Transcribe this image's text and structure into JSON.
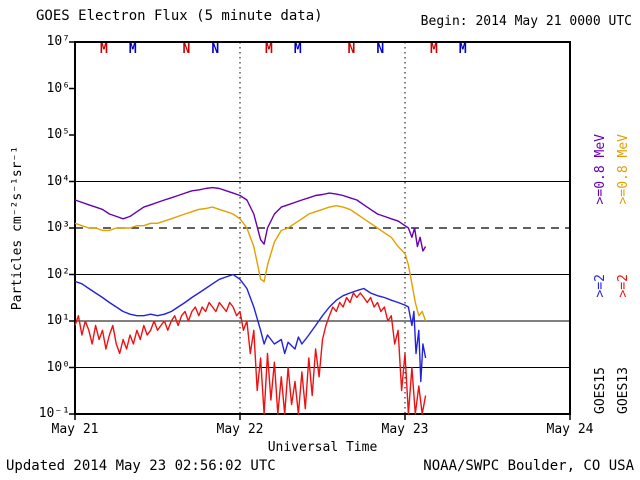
{
  "header": {
    "title": "GOES Electron Flux (5 minute data)",
    "begin": "Begin: 2014 May 21 0000 UTC"
  },
  "footer": {
    "updated": "Updated 2014 May 23 02:56:02 UTC",
    "source": "NOAA/SWPC Boulder, CO USA"
  },
  "right_legend": {
    "goes15": {
      "sat": "GOES15",
      "e2": ">=2",
      "e08": ">=0.8 MeV"
    },
    "goes13": {
      "sat": "GOES13",
      "e2": ">=2",
      "e08": ">=0.8 MeV"
    }
  },
  "colors": {
    "goes15_e08": "#6600b0",
    "goes13_e08": "#e2a000",
    "goes15_e2": "#2222dd",
    "goes13_e2": "#ee1111",
    "marker_goes13": "#cc0000",
    "marker_goes15": "#0000cc",
    "axis": "#000000"
  },
  "chart_data": {
    "type": "line",
    "title": "GOES Electron Flux (5 minute data)",
    "xlabel": "Universal Time",
    "ylabel": "Particles cm⁻²s⁻¹sr⁻¹",
    "x_axis_hours_from": "2014 May 21 0000 UTC",
    "xlim_hours": [
      0,
      72
    ],
    "x_ticks": [
      {
        "t": 0,
        "label": "May 21"
      },
      {
        "t": 24,
        "label": "May 22"
      },
      {
        "t": 48,
        "label": "May 23"
      },
      {
        "t": 72,
        "label": "May 24"
      }
    ],
    "y_scale": "log10",
    "ylim": [
      0.1,
      10000000
    ],
    "y_ticks": [
      "10⁷",
      "10⁶",
      "10⁵",
      "10⁴",
      "10³",
      "10²",
      "10¹",
      "10⁰",
      "10⁻¹"
    ],
    "threshold_line": {
      "value": 1000,
      "style": "dashed"
    },
    "gridlines_solid_at": [
      1,
      10,
      100,
      10000
    ],
    "day_boundary_lines_hours": [
      24,
      48
    ],
    "legend_position": "right-vertical",
    "markers": [
      {
        "t": 4.2,
        "label": "M",
        "sat": "GOES13",
        "color": "#cc0000"
      },
      {
        "t": 8.4,
        "label": "M",
        "sat": "GOES15",
        "color": "#0000cc"
      },
      {
        "t": 16.2,
        "label": "N",
        "sat": "GOES13",
        "color": "#cc0000"
      },
      {
        "t": 20.4,
        "label": "N",
        "sat": "GOES15",
        "color": "#0000cc"
      },
      {
        "t": 28.2,
        "label": "M",
        "sat": "GOES13",
        "color": "#cc0000"
      },
      {
        "t": 32.4,
        "label": "M",
        "sat": "GOES15",
        "color": "#0000cc"
      },
      {
        "t": 40.2,
        "label": "N",
        "sat": "GOES13",
        "color": "#cc0000"
      },
      {
        "t": 44.4,
        "label": "N",
        "sat": "GOES15",
        "color": "#0000cc"
      },
      {
        "t": 52.2,
        "label": "M",
        "sat": "GOES13",
        "color": "#cc0000"
      },
      {
        "t": 56.4,
        "label": "M",
        "sat": "GOES15",
        "color": "#0000cc"
      }
    ],
    "series": [
      {
        "id": "goes15-e08",
        "name": "GOES15 >=0.8 MeV",
        "color": "#6600b0",
        "points": [
          [
            0,
            4000
          ],
          [
            1,
            3550
          ],
          [
            2,
            3160
          ],
          [
            3,
            2820
          ],
          [
            4,
            2510
          ],
          [
            5,
            2000
          ],
          [
            6,
            1780
          ],
          [
            7,
            1580
          ],
          [
            8,
            1780
          ],
          [
            9,
            2240
          ],
          [
            10,
            2820
          ],
          [
            11,
            3160
          ],
          [
            12,
            3550
          ],
          [
            13,
            4000
          ],
          [
            14,
            4470
          ],
          [
            15,
            5000
          ],
          [
            16,
            5620
          ],
          [
            17,
            6310
          ],
          [
            18,
            6610
          ],
          [
            19,
            7080
          ],
          [
            20,
            7410
          ],
          [
            21,
            7080
          ],
          [
            22,
            6310
          ],
          [
            23,
            5620
          ],
          [
            24,
            5000
          ],
          [
            25,
            4000
          ],
          [
            26,
            2000
          ],
          [
            27,
            560
          ],
          [
            27.5,
            450
          ],
          [
            28,
            1000
          ],
          [
            29,
            2000
          ],
          [
            30,
            2820
          ],
          [
            31,
            3160
          ],
          [
            32,
            3550
          ],
          [
            33,
            4000
          ],
          [
            34,
            4470
          ],
          [
            35,
            5000
          ],
          [
            36,
            5250
          ],
          [
            37,
            5620
          ],
          [
            38,
            5370
          ],
          [
            39,
            5000
          ],
          [
            40,
            4470
          ],
          [
            41,
            4000
          ],
          [
            42,
            3160
          ],
          [
            43,
            2510
          ],
          [
            44,
            2000
          ],
          [
            45,
            1780
          ],
          [
            46,
            1580
          ],
          [
            47,
            1410
          ],
          [
            48,
            1120
          ],
          [
            48.5,
            1000
          ],
          [
            49,
            630
          ],
          [
            49.4,
            1000
          ],
          [
            49.8,
            400
          ],
          [
            50.2,
            630
          ],
          [
            50.6,
            320
          ],
          [
            51,
            400
          ]
        ]
      },
      {
        "id": "goes13-e08",
        "name": "GOES13 >=0.8 MeV",
        "color": "#e2a000",
        "points": [
          [
            0,
            1260
          ],
          [
            1,
            1120
          ],
          [
            2,
            1000
          ],
          [
            3,
            1000
          ],
          [
            4,
            890
          ],
          [
            5,
            890
          ],
          [
            6,
            1000
          ],
          [
            7,
            1000
          ],
          [
            8,
            1000
          ],
          [
            9,
            1120
          ],
          [
            10,
            1120
          ],
          [
            11,
            1260
          ],
          [
            12,
            1260
          ],
          [
            13,
            1410
          ],
          [
            14,
            1580
          ],
          [
            15,
            1780
          ],
          [
            16,
            2000
          ],
          [
            17,
            2240
          ],
          [
            18,
            2510
          ],
          [
            19,
            2630
          ],
          [
            20,
            2820
          ],
          [
            21,
            2510
          ],
          [
            22,
            2240
          ],
          [
            23,
            2000
          ],
          [
            24,
            1580
          ],
          [
            25,
            1000
          ],
          [
            26,
            400
          ],
          [
            27,
            80
          ],
          [
            27.5,
            70
          ],
          [
            28,
            160
          ],
          [
            29,
            500
          ],
          [
            30,
            890
          ],
          [
            31,
            1000
          ],
          [
            32,
            1260
          ],
          [
            33,
            1580
          ],
          [
            34,
            2000
          ],
          [
            35,
            2240
          ],
          [
            36,
            2510
          ],
          [
            37,
            2820
          ],
          [
            38,
            3020
          ],
          [
            39,
            2820
          ],
          [
            40,
            2510
          ],
          [
            41,
            2000
          ],
          [
            42,
            1580
          ],
          [
            43,
            1260
          ],
          [
            44,
            1000
          ],
          [
            45,
            790
          ],
          [
            46,
            630
          ],
          [
            47,
            400
          ],
          [
            48,
            280
          ],
          [
            48.5,
            160
          ],
          [
            49,
            63
          ],
          [
            49.5,
            25
          ],
          [
            50,
            13
          ],
          [
            50.5,
            16
          ],
          [
            51,
            10
          ]
        ]
      },
      {
        "id": "goes15-e2",
        "name": "GOES15 >=2 MeV",
        "color": "#2222dd",
        "points": [
          [
            0,
            71
          ],
          [
            1,
            63
          ],
          [
            2,
            50
          ],
          [
            3,
            40
          ],
          [
            4,
            32
          ],
          [
            5,
            25
          ],
          [
            6,
            20
          ],
          [
            7,
            16
          ],
          [
            8,
            14
          ],
          [
            9,
            13
          ],
          [
            10,
            13
          ],
          [
            11,
            14
          ],
          [
            12,
            13
          ],
          [
            13,
            14
          ],
          [
            14,
            16
          ],
          [
            15,
            20
          ],
          [
            16,
            25
          ],
          [
            17,
            32
          ],
          [
            18,
            40
          ],
          [
            19,
            50
          ],
          [
            20,
            63
          ],
          [
            21,
            79
          ],
          [
            22,
            89
          ],
          [
            23,
            100
          ],
          [
            24,
            79
          ],
          [
            25,
            50
          ],
          [
            26,
            20
          ],
          [
            27,
            6.3
          ],
          [
            27.5,
            3.2
          ],
          [
            28,
            5
          ],
          [
            29,
            3.2
          ],
          [
            30,
            4
          ],
          [
            30.5,
            2
          ],
          [
            31,
            3.5
          ],
          [
            32,
            2.5
          ],
          [
            32.5,
            4.5
          ],
          [
            33,
            3.2
          ],
          [
            34,
            5
          ],
          [
            35,
            8
          ],
          [
            36,
            13
          ],
          [
            37,
            20
          ],
          [
            38,
            28
          ],
          [
            39,
            35
          ],
          [
            40,
            40
          ],
          [
            41,
            45
          ],
          [
            42,
            50
          ],
          [
            43,
            40
          ],
          [
            44,
            35
          ],
          [
            45,
            32
          ],
          [
            46,
            28
          ],
          [
            47,
            25
          ],
          [
            48,
            22
          ],
          [
            48.5,
            20
          ],
          [
            49,
            8
          ],
          [
            49.3,
            16
          ],
          [
            49.6,
            2
          ],
          [
            50,
            6.3
          ],
          [
            50.3,
            0.5
          ],
          [
            50.6,
            3.2
          ],
          [
            51,
            1.6
          ]
        ]
      },
      {
        "id": "goes13-e2",
        "name": "GOES13 >=2 MeV",
        "color": "#ee1111",
        "points": [
          [
            0,
            8
          ],
          [
            0.5,
            13
          ],
          [
            1,
            5
          ],
          [
            1.5,
            10
          ],
          [
            2,
            6.3
          ],
          [
            2.5,
            3.2
          ],
          [
            3,
            8
          ],
          [
            3.5,
            4
          ],
          [
            4,
            6.3
          ],
          [
            4.5,
            2.5
          ],
          [
            5,
            5
          ],
          [
            5.5,
            8
          ],
          [
            6,
            3.2
          ],
          [
            6.5,
            2
          ],
          [
            7,
            4
          ],
          [
            7.5,
            2.5
          ],
          [
            8,
            5
          ],
          [
            8.5,
            3.2
          ],
          [
            9,
            6.3
          ],
          [
            9.5,
            4
          ],
          [
            10,
            8
          ],
          [
            10.5,
            5
          ],
          [
            11,
            6.3
          ],
          [
            11.5,
            10
          ],
          [
            12,
            6.3
          ],
          [
            12.5,
            8
          ],
          [
            13,
            10
          ],
          [
            13.5,
            6.3
          ],
          [
            14,
            10
          ],
          [
            14.5,
            13
          ],
          [
            15,
            8
          ],
          [
            15.5,
            13
          ],
          [
            16,
            16
          ],
          [
            16.5,
            10
          ],
          [
            17,
            16
          ],
          [
            17.5,
            20
          ],
          [
            18,
            13
          ],
          [
            18.5,
            20
          ],
          [
            19,
            16
          ],
          [
            19.5,
            25
          ],
          [
            20,
            20
          ],
          [
            20.5,
            16
          ],
          [
            21,
            25
          ],
          [
            21.5,
            20
          ],
          [
            22,
            16
          ],
          [
            22.5,
            25
          ],
          [
            23,
            20
          ],
          [
            23.5,
            13
          ],
          [
            24,
            16
          ],
          [
            24.5,
            6.3
          ],
          [
            25,
            10
          ],
          [
            25.5,
            2
          ],
          [
            26,
            6.3
          ],
          [
            26.5,
            0.32
          ],
          [
            27,
            1.6
          ],
          [
            27.5,
            0.1
          ],
          [
            28,
            2
          ],
          [
            28.5,
            0.2
          ],
          [
            29,
            1.3
          ],
          [
            29.5,
            0.1
          ],
          [
            30,
            0.63
          ],
          [
            30.5,
            0.1
          ],
          [
            31,
            1
          ],
          [
            31.5,
            0.16
          ],
          [
            32,
            0.5
          ],
          [
            32.5,
            0.1
          ],
          [
            33,
            0.8
          ],
          [
            33.5,
            0.13
          ],
          [
            34,
            1.6
          ],
          [
            34.5,
            0.25
          ],
          [
            35,
            2.5
          ],
          [
            35.5,
            0.63
          ],
          [
            36,
            4
          ],
          [
            36.5,
            8
          ],
          [
            37,
            13
          ],
          [
            37.5,
            20
          ],
          [
            38,
            16
          ],
          [
            38.5,
            25
          ],
          [
            39,
            20
          ],
          [
            39.5,
            32
          ],
          [
            40,
            25
          ],
          [
            40.5,
            40
          ],
          [
            41,
            32
          ],
          [
            41.5,
            40
          ],
          [
            42,
            32
          ],
          [
            42.5,
            25
          ],
          [
            43,
            32
          ],
          [
            43.5,
            20
          ],
          [
            44,
            25
          ],
          [
            44.5,
            16
          ],
          [
            45,
            20
          ],
          [
            45.5,
            10
          ],
          [
            46,
            13
          ],
          [
            46.5,
            3.2
          ],
          [
            47,
            6.3
          ],
          [
            47.5,
            0.32
          ],
          [
            48,
            2
          ],
          [
            48.5,
            0.1
          ],
          [
            49,
            1
          ],
          [
            49.5,
            0.1
          ],
          [
            50,
            0.4
          ],
          [
            50.5,
            0.1
          ],
          [
            51,
            0.25
          ]
        ]
      }
    ]
  }
}
